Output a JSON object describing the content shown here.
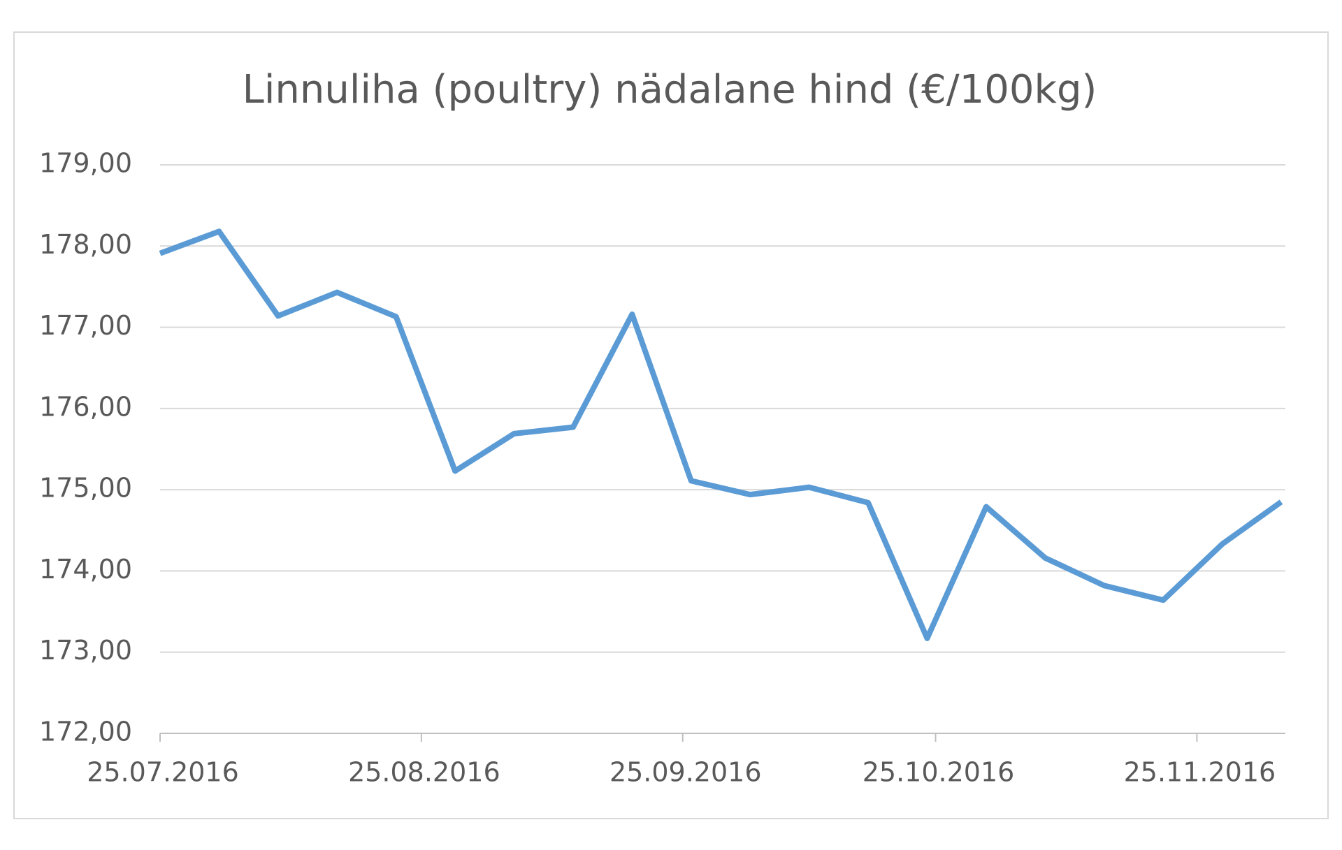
{
  "chart_data": {
    "type": "line",
    "title": "Linnuliha (poultry) nädalane hind (€/100kg)",
    "x": [
      "25.07.2016",
      "01.08.2016",
      "08.08.2016",
      "15.08.2016",
      "22.08.2016",
      "29.08.2016",
      "05.09.2016",
      "12.09.2016",
      "19.09.2016",
      "26.09.2016",
      "03.10.2016",
      "10.10.2016",
      "17.10.2016",
      "24.10.2016",
      "31.10.2016",
      "07.11.2016",
      "14.11.2016",
      "21.11.2016",
      "28.11.2016",
      "05.12.2016"
    ],
    "series": [
      {
        "color": "#5b9bd5",
        "values": [
          177.91,
          178.18,
          177.14,
          177.43,
          177.13,
          175.23,
          175.69,
          175.77,
          177.16,
          175.11,
          174.94,
          175.03,
          174.84,
          173.17,
          174.79,
          174.16,
          173.82,
          173.64,
          174.33,
          174.85
        ]
      }
    ],
    "xlim": [
      "25.07.2016",
      "05.12.2016"
    ],
    "xticks": [
      "25.07.2016",
      "25.08.2016",
      "25.09.2016",
      "25.10.2016",
      "25.11.2016"
    ],
    "ylim": [
      172,
      179
    ],
    "yticks": [
      {
        "value": 172,
        "label": "172,00"
      },
      {
        "value": 173,
        "label": "173,00"
      },
      {
        "value": 174,
        "label": "174,00"
      },
      {
        "value": 175,
        "label": "175,00"
      },
      {
        "value": 176,
        "label": "176,00"
      },
      {
        "value": 177,
        "label": "177,00"
      },
      {
        "value": 178,
        "label": "178,00"
      },
      {
        "value": 179,
        "label": "179,00"
      }
    ],
    "grid": true
  }
}
